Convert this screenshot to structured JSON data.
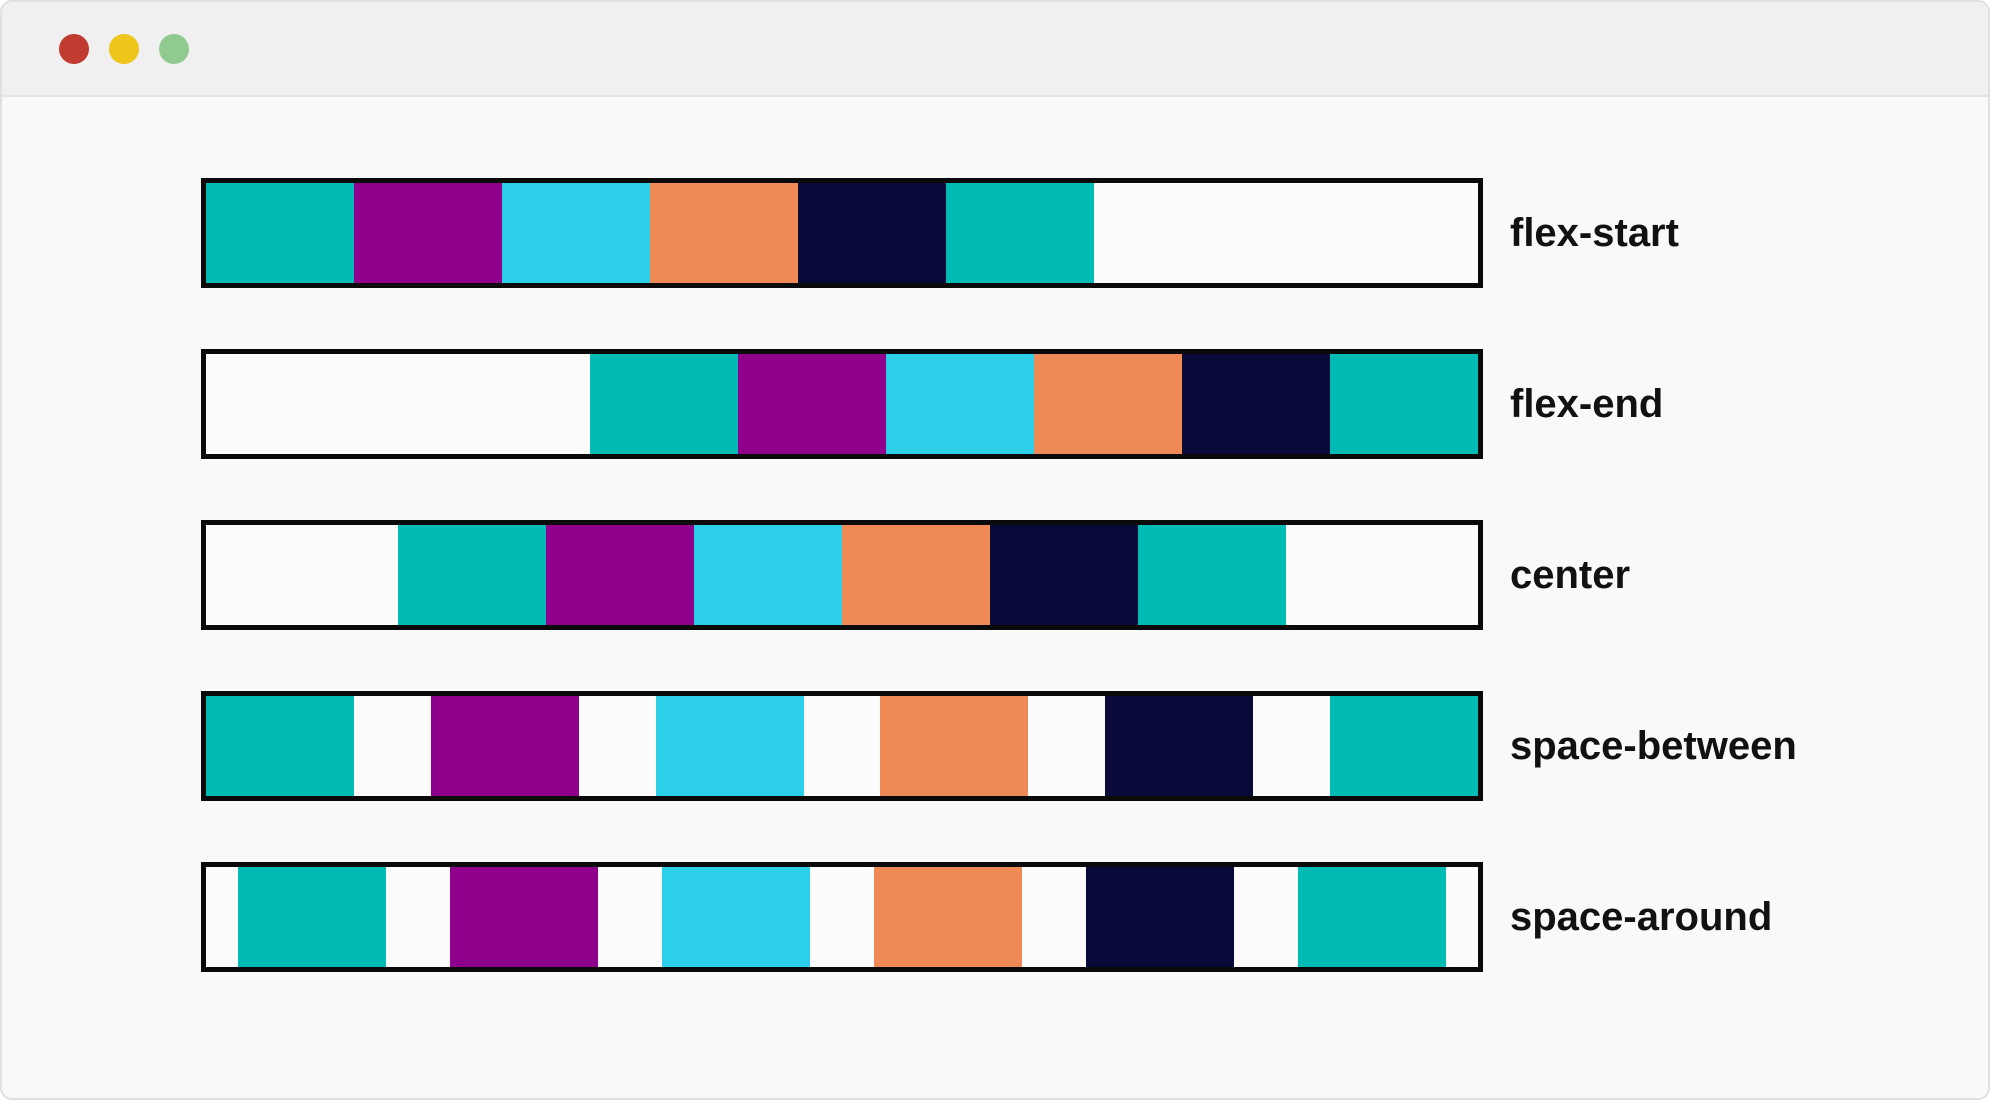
{
  "window": {
    "traffic_lights": [
      {
        "name": "red",
        "color": "#C23B31"
      },
      {
        "name": "yellow",
        "color": "#EDC51B"
      },
      {
        "name": "green",
        "color": "#90CA8E"
      }
    ]
  },
  "demo": {
    "rows": [
      {
        "label": "flex-start",
        "justify": "flex-start"
      },
      {
        "label": "flex-end",
        "justify": "flex-end"
      },
      {
        "label": "center",
        "justify": "center"
      },
      {
        "label": "space-between",
        "justify": "space-between"
      },
      {
        "label": "space-around",
        "justify": "space-around"
      }
    ],
    "item_colors": [
      "teal",
      "purple",
      "cyan",
      "orange",
      "navy",
      "teal"
    ],
    "palette": {
      "teal": "#00BCB4",
      "purple": "#8E008B",
      "cyan": "#2BD0E8",
      "orange": "#EF8A57",
      "navy": "#0A0A3A"
    },
    "container_border_color": "#0A0A0A",
    "label_color": "#111111"
  },
  "theme": {
    "page_bg": "#F9F9F9",
    "titlebar_bg": "#F0F0F0",
    "titlebar_border": "#E3E3E3",
    "container_bg": "#FCFCFC",
    "outer_border": "#E0E0E0"
  }
}
